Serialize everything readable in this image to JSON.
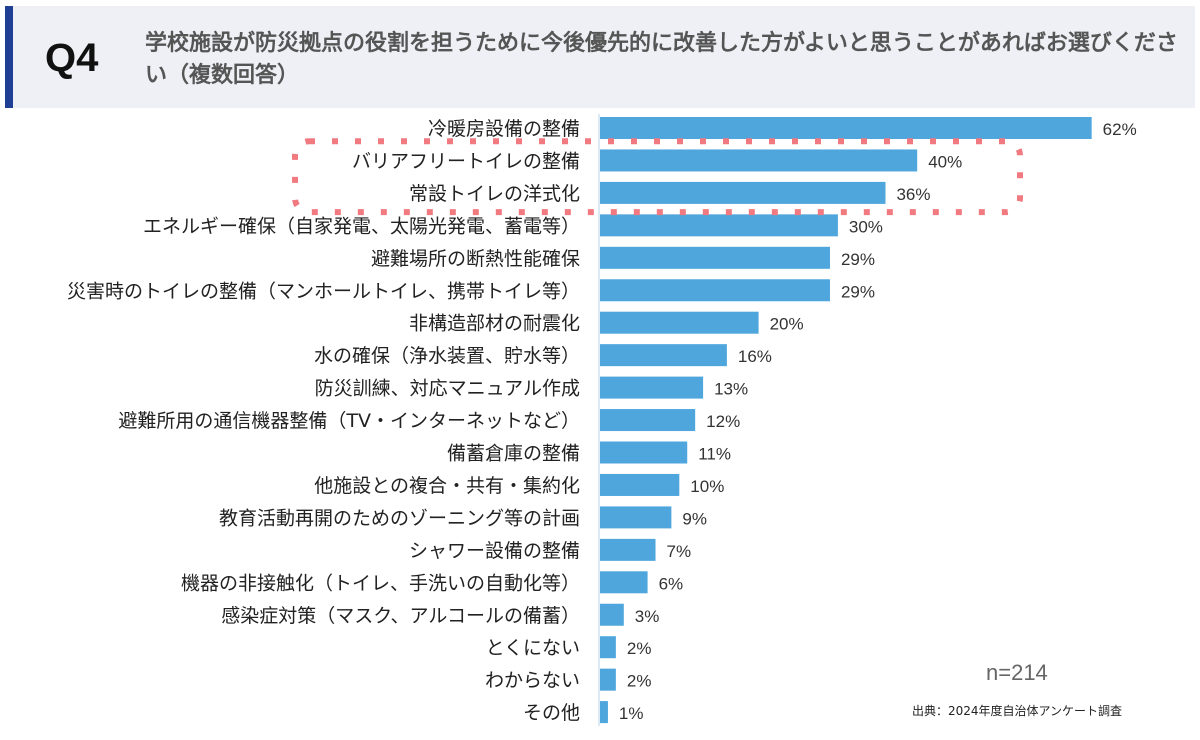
{
  "header": {
    "question_number": "Q4",
    "title": "学校施設が防災拠点の役割を担うために今後優先的に改善した方がよいと思うことがあればお選びください（複数回答）"
  },
  "chart_data": {
    "type": "bar",
    "orientation": "horizontal",
    "categories": [
      "冷暖房設備の整備",
      "バリアフリートイレの整備",
      "常設トイレの洋式化",
      "エネルギー確保（自家発電、太陽光発電、蓄電等）",
      "避難場所の断熱性能確保",
      "災害時のトイレの整備（マンホールトイレ、携帯トイレ等）",
      "非構造部材の耐震化",
      "水の確保（浄水装置、貯水等）",
      "防災訓練、対応マニュアル作成",
      "避難所用の通信機器整備（TV・インターネットなど）",
      "備蓄倉庫の整備",
      "他施設との複合・共有・集約化",
      "教育活動再開のためのゾーニング等の計画",
      "シャワー設備の整備",
      "機器の非接触化（トイレ、手洗いの自動化等）",
      "感染症対策（マスク、アルコールの備蓄）",
      "とくにない",
      "わからない",
      "その他"
    ],
    "values": [
      62,
      40,
      36,
      30,
      29,
      29,
      20,
      16,
      13,
      12,
      11,
      10,
      9,
      7,
      6,
      3,
      2,
      2,
      1
    ],
    "value_labels": [
      "62%",
      "40%",
      "36%",
      "30%",
      "29%",
      "29%",
      "20%",
      "16%",
      "13%",
      "12%",
      "11%",
      "10%",
      "9%",
      "7%",
      "6%",
      "3%",
      "2%",
      "2%",
      "1%"
    ],
    "unit": "%",
    "bar_color": "#4ea6dc",
    "highlight": {
      "categories_index": [
        1,
        2
      ],
      "style": "dotted-box",
      "color": "#f07a80"
    },
    "grid": false
  },
  "footer": {
    "sample_size": "n=214",
    "source": "出典：2024年度自治体アンケート調査"
  }
}
